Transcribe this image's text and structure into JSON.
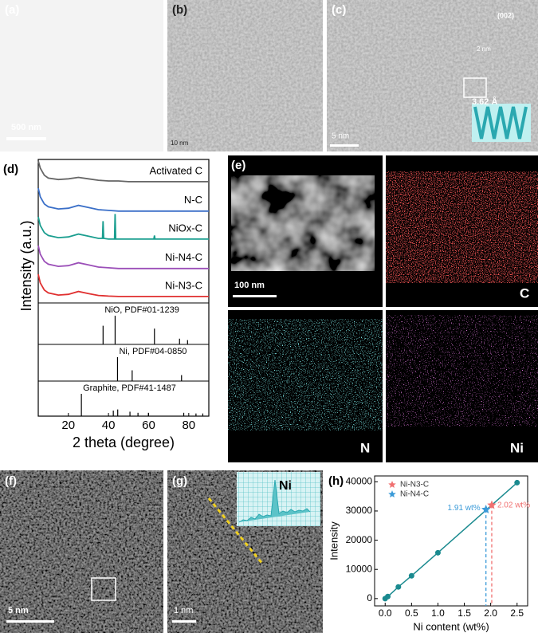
{
  "panels": {
    "a": {
      "label": "(a)",
      "scale": "500 nm"
    },
    "b": {
      "label": "(b)",
      "scale": "10 nm"
    },
    "c": {
      "label": "(c)",
      "scale": "5 nm",
      "inset_label": "(002)",
      "inset_scale": "2 nm",
      "spacing": "3.62 Å"
    },
    "e": {
      "label": "(e)",
      "scale": "100 nm",
      "maps": [
        "C",
        "N",
        "Ni"
      ]
    },
    "f": {
      "label": "(f)",
      "scale": "5 nm"
    },
    "g": {
      "label": "(g)",
      "scale": "1 nm",
      "inset": "Ni"
    }
  },
  "chart_data": [
    {
      "type": "line",
      "panel_label": "(d)",
      "xlabel": "2 theta (degree)",
      "ylabel": "Intensity (a.u.)",
      "xlim": [
        5,
        90
      ],
      "xticks": [
        20,
        40,
        60,
        80
      ],
      "ylim": [
        0,
        100
      ],
      "series": [
        {
          "name": "Activated C",
          "color": "#666666",
          "x": [
            5,
            6,
            8,
            10,
            15,
            20,
            25,
            30,
            35,
            40,
            45,
            50,
            60,
            70,
            80,
            90
          ],
          "values": [
            99,
            94,
            89,
            87,
            86,
            86.5,
            87.5,
            86.5,
            85.5,
            85,
            85,
            84.5,
            84.5,
            84.5,
            84.5,
            84.5
          ]
        },
        {
          "name": "N-C",
          "color": "#3a6fc8",
          "x": [
            5,
            6,
            8,
            10,
            15,
            20,
            25,
            30,
            35,
            40,
            45,
            50,
            60,
            70,
            80,
            90
          ],
          "values": [
            80,
            74,
            69,
            67,
            65.5,
            66,
            68,
            66.5,
            65,
            64.5,
            64,
            64,
            64,
            64,
            64,
            64
          ]
        },
        {
          "name": "NiOx-C",
          "color": "#1a9e8f",
          "x": [
            5,
            6,
            8,
            10,
            15,
            20,
            25,
            30,
            35,
            37,
            37.3,
            37.6,
            40,
            43,
            43.3,
            43.6,
            50,
            62.6,
            62.9,
            63.2,
            70,
            80,
            90
          ],
          "values": [
            60,
            54,
            49,
            47,
            45.5,
            46,
            48,
            46.5,
            45,
            45,
            57,
            45,
            44.5,
            44.5,
            62,
            44.5,
            44.5,
            44.5,
            47,
            44.5,
            44.5,
            44.5,
            44.5
          ]
        },
        {
          "name": "Ni-N4-C",
          "color": "#9b4fb8",
          "x": [
            5,
            6,
            8,
            10,
            15,
            20,
            25,
            30,
            35,
            40,
            45,
            50,
            60,
            70,
            80,
            90
          ],
          "values": [
            40,
            34,
            29,
            27,
            25.5,
            26,
            28,
            26.5,
            25,
            24.5,
            24,
            24,
            24,
            24,
            24,
            24
          ]
        },
        {
          "name": "Ni-N3-C",
          "color": "#e03030",
          "x": [
            5,
            6,
            8,
            10,
            15,
            20,
            25,
            30,
            35,
            40,
            45,
            50,
            60,
            70,
            80,
            90
          ],
          "values": [
            20,
            14,
            9,
            7,
            5.5,
            6,
            8,
            6.5,
            5.2,
            4.8,
            4.5,
            4.5,
            4.5,
            4.5,
            4.5,
            4.5
          ]
        }
      ],
      "references": [
        {
          "name": "NiO, PDF#01-1239",
          "peaks": [
            37.3,
            43.3,
            62.9,
            75.4,
            79.4
          ],
          "heights": [
            65,
            100,
            55,
            20,
            15
          ]
        },
        {
          "name": "Ni, PDF#04-0850",
          "peaks": [
            44.5,
            51.8,
            76.4
          ],
          "heights": [
            100,
            45,
            25
          ]
        },
        {
          "name": "Graphite, PDF#41-1487",
          "peaks": [
            26.5,
            42.4,
            44.6,
            50.7,
            54.7,
            59.9,
            77.5,
            83.6,
            87
          ],
          "heights": [
            100,
            25,
            30,
            20,
            15,
            15,
            15,
            12,
            12
          ]
        }
      ]
    },
    {
      "type": "scatter",
      "panel_label": "(h)",
      "xlabel": "Ni content (wt%)",
      "ylabel": "Intensity",
      "xlim": [
        -0.2,
        2.7
      ],
      "xticks": [
        {
          "value": 0,
          "label": "0.0"
        },
        {
          "value": 0.5,
          "label": "0.5"
        },
        {
          "value": 1,
          "label": "1.0"
        },
        {
          "value": 1.5,
          "label": "1.5"
        },
        {
          "value": 2,
          "label": "2.0"
        },
        {
          "value": 2.5,
          "label": "2.5"
        }
      ],
      "ylim": [
        -2500,
        42000
      ],
      "yticks": [
        0,
        10000,
        20000,
        30000,
        40000
      ],
      "series": [
        {
          "color": "#1a8a8f",
          "x": [
            0,
            0.05,
            0.25,
            0.5,
            1,
            2.5
          ],
          "values": [
            0,
            700,
            4000,
            7800,
            15700,
            39700
          ]
        },
        {
          "name": "Ni-N3-C",
          "color": "#f07070",
          "x": [
            2.02
          ],
          "values": [
            32000
          ],
          "value_labels": [
            "2.02 wt%"
          ]
        },
        {
          "name": "Ni-N4-C",
          "color": "#3a9ad8",
          "x": [
            1.91
          ],
          "values": [
            30500
          ],
          "value_labels": [
            "1.91 wt%"
          ]
        }
      ]
    }
  ]
}
